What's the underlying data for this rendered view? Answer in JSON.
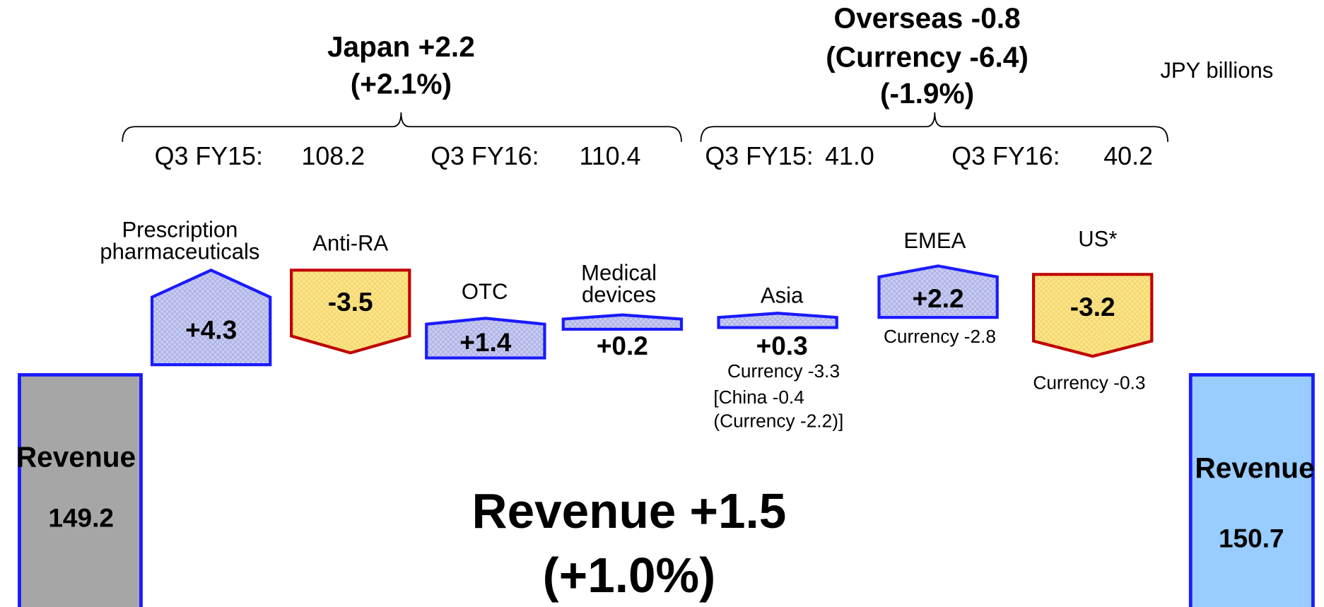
{
  "unit": "JPY billions",
  "japan": {
    "title": "Japan +2.2",
    "change_pct": "(+2.1%)",
    "prev_label": "Q3 FY15:",
    "prev_value": "108.2",
    "curr_label": "Q3 FY16:",
    "curr_value": "110.4"
  },
  "overseas": {
    "title": "Overseas -0.8",
    "currency": "(Currency -6.4)",
    "change_pct": "(-1.9%)",
    "prev_label": "Q3 FY15:",
    "prev_value": "41.0",
    "curr_label": "Q3 FY16:",
    "curr_value": "40.2"
  },
  "items": [
    {
      "label": [
        "Prescription",
        "pharmaceuticals"
      ],
      "value": "+4.3",
      "notes": []
    },
    {
      "label": [
        "Anti-RA"
      ],
      "value": "-3.5",
      "notes": []
    },
    {
      "label": [
        "OTC"
      ],
      "value": "+1.4",
      "notes": []
    },
    {
      "label": [
        "Medical",
        "devices"
      ],
      "value": "+0.2",
      "notes": []
    },
    {
      "label": [
        "Asia"
      ],
      "value": "+0.3",
      "notes": [
        "Currency -3.3",
        "[China -0.4",
        "(Currency -2.2)]"
      ]
    },
    {
      "label": [
        "EMEA"
      ],
      "value": "+2.2",
      "notes": [
        "Currency -2.8"
      ]
    },
    {
      "label": [
        "US*"
      ],
      "value": "-3.2",
      "notes": [
        "Currency -0.3"
      ]
    }
  ],
  "start": {
    "label": "Revenue",
    "value": "149.2"
  },
  "end": {
    "label": "Revenue",
    "value": "150.7"
  },
  "total": {
    "title": "Revenue +1.5",
    "change_pct": "(+1.0%)"
  }
}
